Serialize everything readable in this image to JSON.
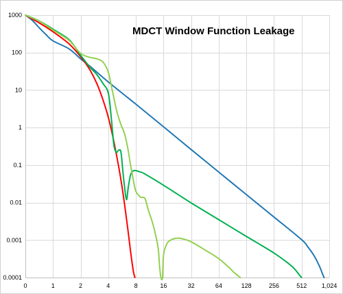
{
  "chart_data": {
    "type": "line",
    "title": "MDCT Window Function Leakage",
    "xlabel": "",
    "ylabel": "",
    "x_scale": "log2-offset",
    "x_ticks": [
      "0",
      "1",
      "2",
      "4",
      "8",
      "16",
      "32",
      "64",
      "128",
      "256",
      "512",
      "1,024"
    ],
    "y_scale": "log10",
    "y_ticks": [
      "0.0001",
      "0.001",
      "0.01",
      "0.1",
      "1",
      "10",
      "100",
      "1000"
    ],
    "xlim": [
      0,
      1024
    ],
    "ylim": [
      0.0001,
      1000
    ],
    "grid": true,
    "legend": "none",
    "series": [
      {
        "color": "#1f77b4",
        "points": [
          [
            0,
            1000
          ],
          [
            0.25,
            720
          ],
          [
            0.5,
            460
          ],
          [
            0.75,
            300
          ],
          [
            1,
            205
          ],
          [
            1.5,
            125
          ],
          [
            2,
            68
          ],
          [
            2.5,
            44
          ],
          [
            3,
            30
          ],
          [
            4,
            16.5
          ],
          [
            6,
            7.4
          ],
          [
            8,
            4.2
          ],
          [
            16,
            1.05
          ],
          [
            32,
            0.26
          ],
          [
            64,
            0.065
          ],
          [
            128,
            0.0163
          ],
          [
            256,
            0.0041
          ],
          [
            512,
            0.00102
          ],
          [
            600,
            0.00065
          ],
          [
            700,
            0.00038
          ],
          [
            800,
            0.0002
          ],
          [
            870,
            0.00012
          ],
          [
            900,
            0.0001
          ]
        ]
      },
      {
        "color": "#ff0000",
        "points": [
          [
            0,
            1000
          ],
          [
            0.5,
            620
          ],
          [
            1,
            360
          ],
          [
            1.5,
            170
          ],
          [
            2,
            78
          ],
          [
            2.5,
            36
          ],
          [
            3,
            15
          ],
          [
            3.5,
            5.5
          ],
          [
            4,
            1.9
          ],
          [
            4.5,
            0.55
          ],
          [
            5,
            0.15
          ],
          [
            5.5,
            0.04
          ],
          [
            6,
            0.0095
          ],
          [
            6.5,
            0.0022
          ],
          [
            7,
            0.0005
          ],
          [
            7.5,
            0.00015
          ],
          [
            7.8,
            0.0001
          ]
        ]
      },
      {
        "color": "#00b050",
        "points": [
          [
            0,
            1000
          ],
          [
            0.5,
            700
          ],
          [
            1,
            420
          ],
          [
            1.5,
            220
          ],
          [
            2,
            85
          ],
          [
            2.5,
            42
          ],
          [
            3,
            26
          ],
          [
            3.5,
            15
          ],
          [
            4,
            8.5
          ],
          [
            4.3,
            2
          ],
          [
            4.6,
            0.35
          ],
          [
            4.9,
            0.22
          ],
          [
            5.2,
            0.25
          ],
          [
            5.5,
            0.22
          ],
          [
            5.8,
            0.06
          ],
          [
            6.1,
            0.02
          ],
          [
            6.35,
            0.012
          ],
          [
            6.6,
            0.025
          ],
          [
            7,
            0.055
          ],
          [
            7.5,
            0.07
          ],
          [
            8,
            0.071
          ],
          [
            9,
            0.065
          ],
          [
            10,
            0.058
          ],
          [
            16,
            0.029
          ],
          [
            32,
            0.0098
          ],
          [
            64,
            0.0035
          ],
          [
            128,
            0.00125
          ],
          [
            256,
            0.00045
          ],
          [
            400,
            0.0002
          ],
          [
            480,
            0.00012
          ],
          [
            510,
            0.0001
          ]
        ]
      },
      {
        "color": "#92d050",
        "points": [
          [
            0,
            1000
          ],
          [
            0.5,
            690
          ],
          [
            1,
            400
          ],
          [
            1.5,
            210
          ],
          [
            2,
            95
          ],
          [
            2.5,
            75
          ],
          [
            3,
            68
          ],
          [
            3.5,
            56
          ],
          [
            4,
            30
          ],
          [
            4.5,
            8
          ],
          [
            5,
            2.5
          ],
          [
            5.5,
            1.2
          ],
          [
            6,
            0.7
          ],
          [
            6.5,
            0.3
          ],
          [
            7,
            0.1
          ],
          [
            7.5,
            0.04
          ],
          [
            8,
            0.02
          ],
          [
            9,
            0.014
          ],
          [
            10,
            0.013
          ],
          [
            11,
            0.006
          ],
          [
            12,
            0.0032
          ],
          [
            13,
            0.0015
          ],
          [
            14,
            0.0006
          ],
          [
            14.5,
            0.0002
          ],
          [
            15,
            0.0001
          ],
          [
            15.6,
            0.0001
          ],
          [
            16,
            0.0004
          ],
          [
            17,
            0.0007
          ],
          [
            18,
            0.0009
          ],
          [
            20,
            0.00105
          ],
          [
            22,
            0.00112
          ],
          [
            25,
            0.0011
          ],
          [
            32,
            0.0009
          ],
          [
            48,
            0.0005
          ],
          [
            64,
            0.00032
          ],
          [
            80,
            0.0002
          ],
          [
            96,
            0.00013
          ],
          [
            110,
            0.0001
          ]
        ]
      }
    ]
  }
}
